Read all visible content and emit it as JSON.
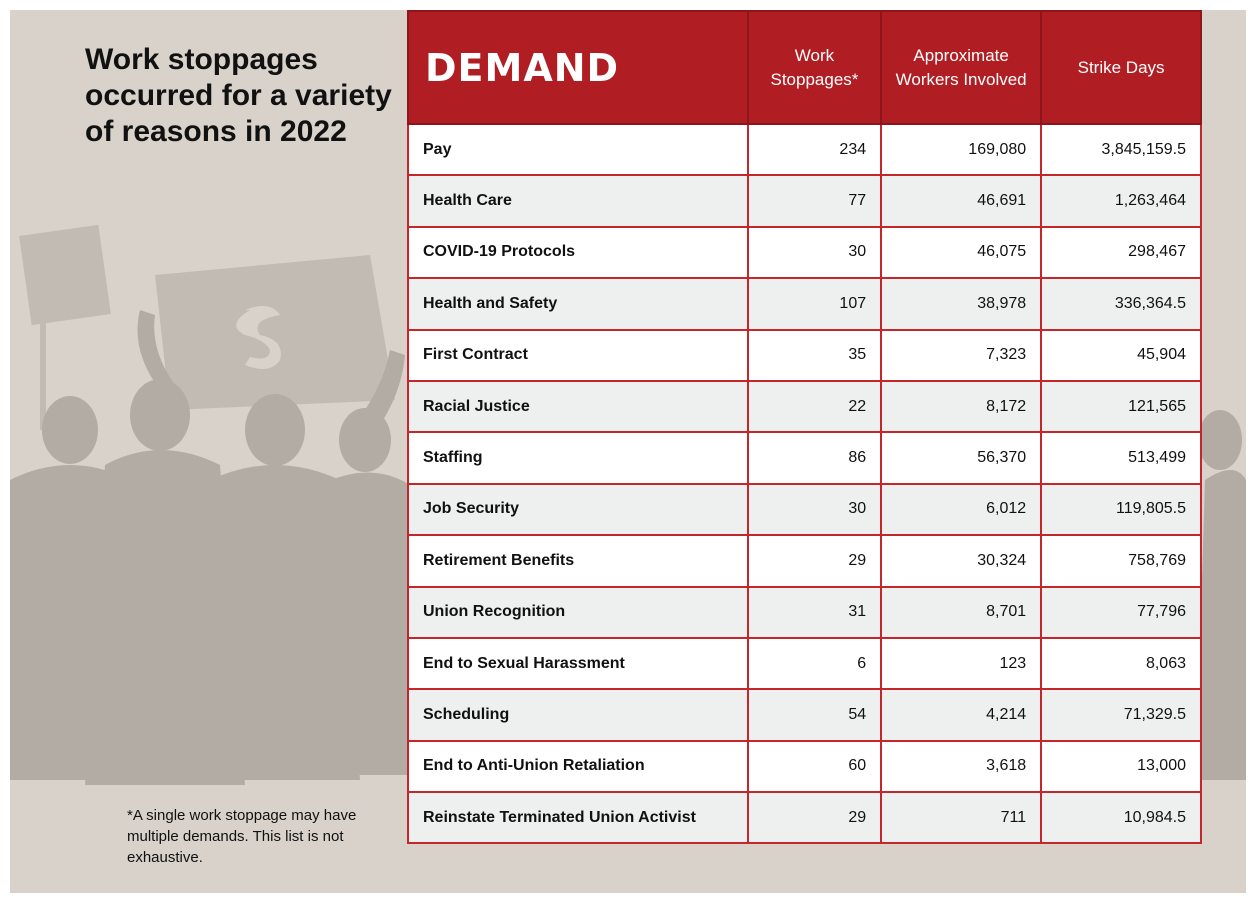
{
  "title": "Work stoppages occurred for a variety of reasons in 2022",
  "footnote": "*A single work stoppage may have multiple demands. This list is not exhaustive.",
  "table": {
    "header": [
      "DEMAND",
      "Work Stoppages*",
      "Approximate Workers Involved",
      "Strike Days"
    ],
    "rows": [
      [
        "Pay",
        "234",
        "169,080",
        "3,845,159.5"
      ],
      [
        "Health Care",
        "77",
        "46,691",
        "1,263,464"
      ],
      [
        "COVID-19 Protocols",
        "30",
        "46,075",
        "298,467"
      ],
      [
        "Health and Safety",
        "107",
        "38,978",
        "336,364.5"
      ],
      [
        "First Contract",
        "35",
        "7,323",
        "45,904"
      ],
      [
        "Racial Justice",
        "22",
        "8,172",
        "121,565"
      ],
      [
        "Staffing",
        "86",
        "56,370",
        "513,499"
      ],
      [
        "Job Security",
        "30",
        "6,012",
        "119,805.5"
      ],
      [
        "Retirement Benefits",
        "29",
        "30,324",
        "758,769"
      ],
      [
        "Union Recognition",
        "31",
        "8,701",
        "77,796"
      ],
      [
        "End to Sexual Harassment",
        "6",
        "123",
        "8,063"
      ],
      [
        "Scheduling",
        "54",
        "4,214",
        "71,329.5"
      ],
      [
        "End to Anti-Union Retaliation",
        "60",
        "3,618",
        "13,000"
      ],
      [
        "Reinstate Terminated Union Activist",
        "29",
        "711",
        "10,984.5"
      ]
    ]
  }
}
